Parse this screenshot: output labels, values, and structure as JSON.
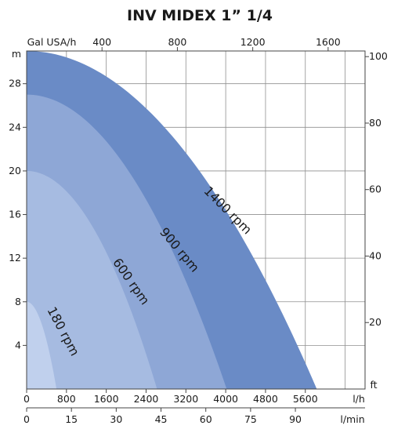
{
  "chart_data": {
    "type": "area",
    "title": "INV MIDEX 1” 1/4",
    "axes": {
      "x_lh": {
        "label": "l/h",
        "ticks": [
          "0",
          "800",
          "1600",
          "2400",
          "3200",
          "4000",
          "4800",
          "5600"
        ],
        "range": [
          0,
          6800
        ]
      },
      "x_lmin": {
        "label": "l/min",
        "ticks": [
          "0",
          "15",
          "30",
          "45",
          "60",
          "75",
          "90"
        ],
        "range": [
          0,
          113.33
        ]
      },
      "x_galusa": {
        "label": "Gal USA/h",
        "ticks": [
          "400",
          "800",
          "1200",
          "1600"
        ],
        "range": [
          0,
          1796
        ]
      },
      "y_m": {
        "label": "m",
        "ticks": [
          "4",
          "8",
          "12",
          "16",
          "20",
          "24",
          "28"
        ],
        "range": [
          0,
          31
        ]
      },
      "y_ft": {
        "label": "ft",
        "ticks": [
          "20",
          "40",
          "60",
          "80",
          "100"
        ],
        "range": [
          0,
          101.7
        ]
      }
    },
    "grid": true,
    "series": [
      {
        "name": "1400 rpm",
        "color": "#6a8bc6",
        "shutoff_head_m": 31,
        "max_flow_lh": 5830,
        "label_angle": 45
      },
      {
        "name": "900 rpm",
        "color": "#8ea7d6",
        "shutoff_head_m": 27,
        "max_flow_lh": 4020,
        "label_angle": 50
      },
      {
        "name": "600 rpm",
        "color": "#a6bbe1",
        "shutoff_head_m": 20,
        "max_flow_lh": 2620,
        "label_angle": 55
      },
      {
        "name": "180 rpm",
        "color": "#c0d0ed",
        "shutoff_head_m": 8,
        "max_flow_lh": 600,
        "label_angle": 62
      }
    ]
  }
}
